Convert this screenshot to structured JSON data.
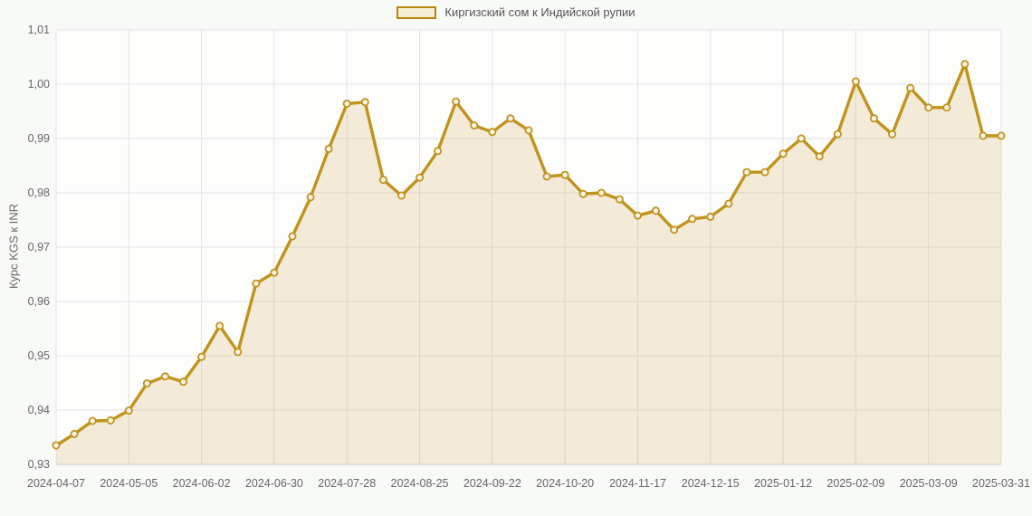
{
  "legend": {
    "label": "Киргизский сом к Индийской рупии"
  },
  "colors": {
    "line": "#c0931c",
    "area_fill": "rgba(192,146,22,0.16)",
    "marker_fill": "#faf5e6",
    "grid": "#e3e3e3",
    "axis_line": "#cfcfcf",
    "axis_text": "#666666",
    "legend_text": "#555555",
    "page_bg": "#f8faf7",
    "plot_bg": "#fdfdfc"
  },
  "chart_data": {
    "type": "area",
    "title": "",
    "xlabel": "",
    "ylabel": "Курс KGS к INR",
    "grid": true,
    "legend_position": "top",
    "marker": "ring",
    "ylim": [
      0.93,
      1.01
    ],
    "y_step": 0.01,
    "y_tick_labels": [
      "0,93",
      "0,94",
      "0,95",
      "0,96",
      "0,97",
      "0,98",
      "0,99",
      "1,00",
      "1,01"
    ],
    "x_tick_indices": [
      0,
      4,
      8,
      12,
      16,
      20,
      24,
      28,
      32,
      36,
      40,
      44,
      48,
      52
    ],
    "x_tick_labels": [
      "2024-04-07",
      "2024-05-05",
      "2024-06-02",
      "2024-06-30",
      "2024-07-28",
      "2024-08-25",
      "2024-09-22",
      "2024-10-20",
      "2024-11-17",
      "2024-12-15",
      "2025-01-12",
      "2025-02-09",
      "2025-03-09",
      "2025-03-31"
    ],
    "series": [
      {
        "name": "Киргизский сом к Индийской рупии",
        "x": [
          "2024-04-07",
          "2024-04-14",
          "2024-04-21",
          "2024-04-28",
          "2024-05-05",
          "2024-05-12",
          "2024-05-19",
          "2024-05-26",
          "2024-06-02",
          "2024-06-09",
          "2024-06-16",
          "2024-06-23",
          "2024-06-30",
          "2024-07-07",
          "2024-07-14",
          "2024-07-21",
          "2024-07-28",
          "2024-08-04",
          "2024-08-11",
          "2024-08-18",
          "2024-08-25",
          "2024-09-01",
          "2024-09-08",
          "2024-09-15",
          "2024-09-22",
          "2024-09-29",
          "2024-10-06",
          "2024-10-13",
          "2024-10-20",
          "2024-10-27",
          "2024-11-03",
          "2024-11-10",
          "2024-11-17",
          "2024-11-24",
          "2024-12-01",
          "2024-12-08",
          "2024-12-15",
          "2024-12-22",
          "2024-12-29",
          "2025-01-05",
          "2025-01-12",
          "2025-01-19",
          "2025-01-26",
          "2025-02-02",
          "2025-02-09",
          "2025-02-16",
          "2025-02-23",
          "2025-03-02",
          "2025-03-09",
          "2025-03-16",
          "2025-03-23",
          "2025-03-30",
          "2025-03-31"
        ],
        "values": [
          0.9335,
          0.9356,
          0.938,
          0.9381,
          0.9399,
          0.9449,
          0.9462,
          0.9452,
          0.9498,
          0.9555,
          0.9507,
          0.9633,
          0.9653,
          0.972,
          0.9792,
          0.9881,
          0.9964,
          0.9967,
          0.9824,
          0.9795,
          0.9828,
          0.9877,
          0.9968,
          0.9924,
          0.9912,
          0.9937,
          0.9915,
          0.983,
          0.9833,
          0.9798,
          0.98,
          0.9788,
          0.9758,
          0.9767,
          0.9732,
          0.9752,
          0.9756,
          0.978,
          0.9838,
          0.9838,
          0.9872,
          0.99,
          0.9867,
          0.9908,
          1.0005,
          0.9937,
          0.9908,
          0.9993,
          0.9957,
          0.9957,
          1.0037,
          0.9905,
          0.9905
        ]
      }
    ]
  }
}
